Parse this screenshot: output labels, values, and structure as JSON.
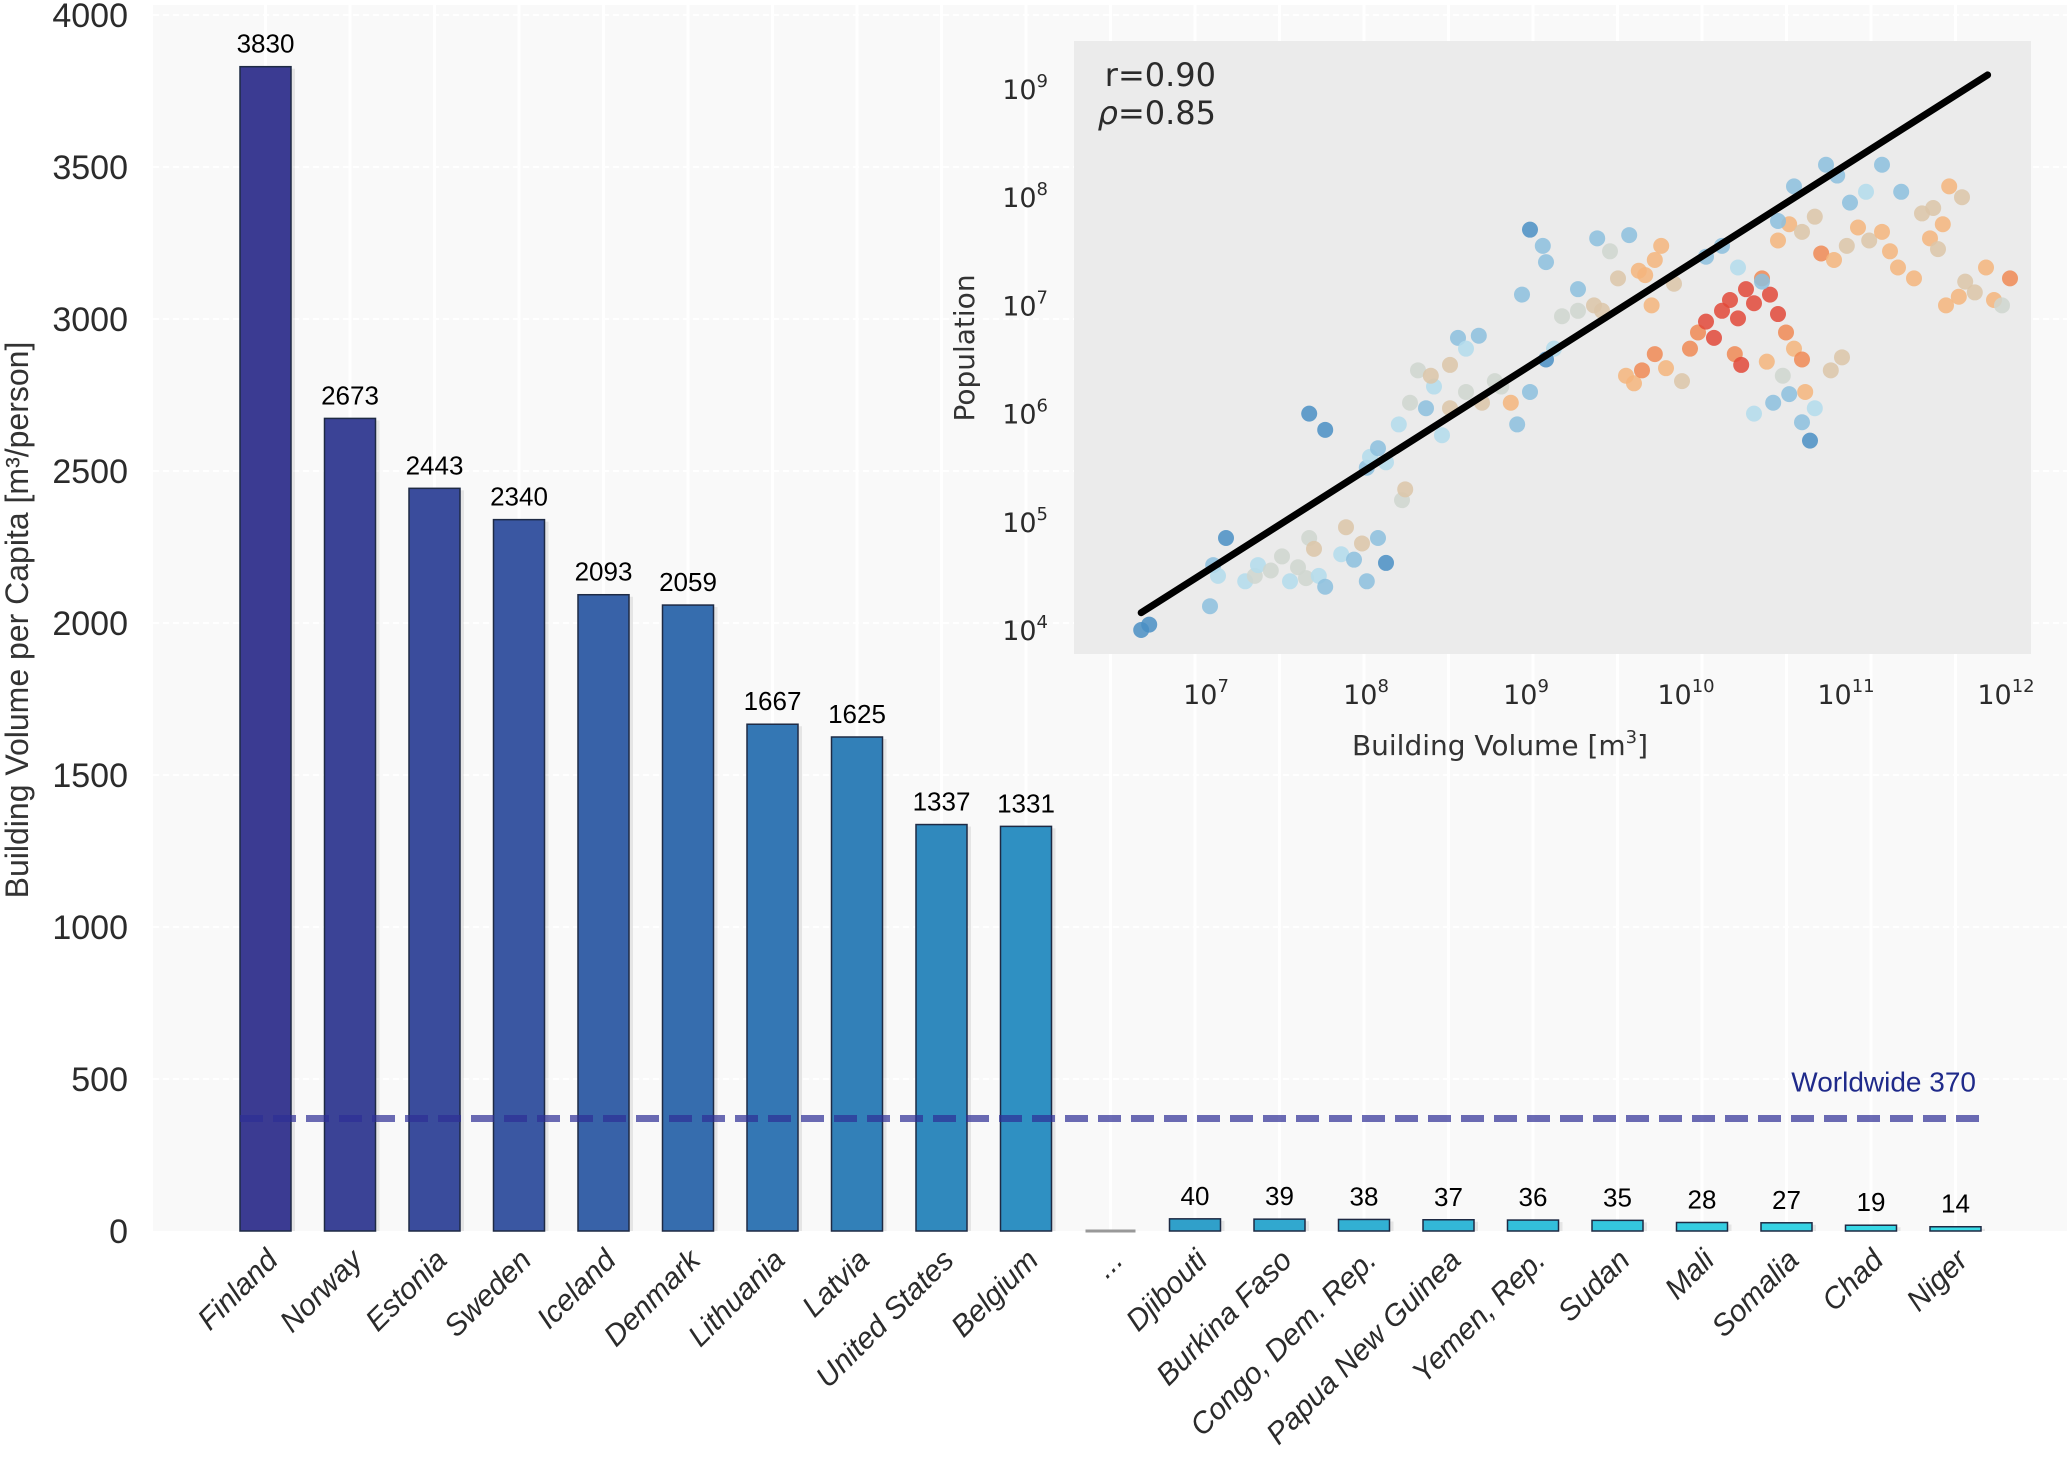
{
  "chart_data": [
    {
      "type": "bar",
      "title": "",
      "ylabel": "Building Volume per Capita [m³/person]",
      "xlabel": "",
      "ylim": [
        0,
        4000
      ],
      "yticks": [
        0,
        500,
        1000,
        1500,
        2000,
        2500,
        3000,
        3500,
        4000
      ],
      "grid": true,
      "categories": [
        "Finland",
        "Norway",
        "Estonia",
        "Sweden",
        "Iceland",
        "Denmark",
        "Lithuania",
        "Latvia",
        "United States",
        "Belgium",
        "...",
        "Djibouti",
        "Burkina Faso",
        "Congo, Dem. Rep.",
        "Papua New Guinea",
        "Yemen, Rep.",
        "Sudan",
        "Mali",
        "Somalia",
        "Chad",
        "Niger"
      ],
      "values": [
        3830,
        2673,
        2443,
        2340,
        2093,
        2059,
        1667,
        1625,
        1337,
        1331,
        null,
        40,
        39,
        38,
        37,
        36,
        35,
        28,
        27,
        19,
        14
      ],
      "data_labels": [
        "3830",
        "2673",
        "2443",
        "2340",
        "2093",
        "2059",
        "1667",
        "1625",
        "1337",
        "1331",
        "",
        "40",
        "39",
        "38",
        "37",
        "36",
        "35",
        "28",
        "27",
        "19",
        "14"
      ],
      "colors": [
        "#3b3b92",
        "#3b4396",
        "#3a4c9c",
        "#3a57a2",
        "#3862a8",
        "#366dae",
        "#3477b4",
        "#3280b8",
        "#3089bd",
        "#2f90c2",
        "#999999",
        "#30a0ca",
        "#31a8cf",
        "#32b0d3",
        "#33b7d7",
        "#33bfdb",
        "#34c6de",
        "#35cde1",
        "#36d2e3",
        "#38d8e6",
        "#3adde8"
      ],
      "reference_line": {
        "value": 370,
        "label": "Worldwide 370",
        "color": "#2e2f96"
      }
    },
    {
      "type": "scatter",
      "title": "",
      "xlabel": "Building Volume [m",
      "xlabel_sup": "3",
      "xlabel_end": "]",
      "ylabel": "Population",
      "xscale": "log",
      "yscale": "log",
      "xlim_log10": [
        6.45,
        12.15
      ],
      "ylim_log10": [
        3.8,
        9.55
      ],
      "xticks": [
        {
          "base": "10",
          "exp": "7",
          "v": 7
        },
        {
          "base": "10",
          "exp": "8",
          "v": 8
        },
        {
          "base": "10",
          "exp": "9",
          "v": 9
        },
        {
          "base": "10",
          "exp": "10",
          "v": 10
        },
        {
          "base": "10",
          "exp": "11",
          "v": 11
        },
        {
          "base": "10",
          "exp": "12",
          "v": 12
        }
      ],
      "yticks": [
        {
          "base": "10",
          "exp": "4",
          "v": 4
        },
        {
          "base": "10",
          "exp": "5",
          "v": 5
        },
        {
          "base": "10",
          "exp": "6",
          "v": 6
        },
        {
          "base": "10",
          "exp": "7",
          "v": 7
        },
        {
          "base": "10",
          "exp": "8",
          "v": 8
        },
        {
          "base": "10",
          "exp": "9",
          "v": 9
        }
      ],
      "annotations": {
        "r": "r=0.90",
        "rho_symbol": "ρ",
        "rho": "=0.85"
      },
      "fit_line_log10": [
        [
          6.57,
          4.16
        ],
        [
          11.86,
          9.13
        ]
      ],
      "palette": [
        "#4a8fc4",
        "#8cc0de",
        "#b3dcec",
        "#cfd6cf",
        "#dcc6a8",
        "#f4b57c",
        "#f08a55",
        "#e2493a"
      ],
      "points_log10": [
        [
          6.57,
          4.0,
          0
        ],
        [
          6.62,
          4.05,
          0
        ],
        [
          7.0,
          4.22,
          1
        ],
        [
          7.02,
          4.6,
          1
        ],
        [
          7.05,
          4.5,
          2
        ],
        [
          7.1,
          4.85,
          0
        ],
        [
          7.22,
          4.45,
          2
        ],
        [
          7.28,
          4.5,
          3
        ],
        [
          7.3,
          4.6,
          2
        ],
        [
          7.38,
          4.55,
          3
        ],
        [
          7.45,
          4.68,
          3
        ],
        [
          7.5,
          4.45,
          2
        ],
        [
          7.55,
          4.58,
          3
        ],
        [
          7.6,
          4.48,
          3
        ],
        [
          7.62,
          4.85,
          3
        ],
        [
          7.65,
          4.75,
          4
        ],
        [
          7.68,
          4.5,
          2
        ],
        [
          7.72,
          4.4,
          1
        ],
        [
          7.82,
          4.7,
          2
        ],
        [
          7.85,
          4.95,
          4
        ],
        [
          7.9,
          4.65,
          1
        ],
        [
          7.95,
          4.8,
          4
        ],
        [
          7.98,
          4.45,
          1
        ],
        [
          8.05,
          4.85,
          1
        ],
        [
          8.1,
          4.62,
          0
        ],
        [
          8.2,
          5.2,
          3
        ],
        [
          8.22,
          5.3,
          4
        ],
        [
          7.62,
          6.0,
          0
        ],
        [
          7.72,
          5.85,
          0
        ],
        [
          7.98,
          5.5,
          1
        ],
        [
          8.0,
          5.6,
          2
        ],
        [
          8.05,
          5.68,
          1
        ],
        [
          8.1,
          5.55,
          2
        ],
        [
          8.18,
          5.9,
          2
        ],
        [
          8.25,
          6.1,
          3
        ],
        [
          8.35,
          6.05,
          1
        ],
        [
          8.4,
          6.25,
          2
        ],
        [
          8.45,
          5.8,
          2
        ],
        [
          8.5,
          6.05,
          4
        ],
        [
          8.6,
          6.2,
          3
        ],
        [
          8.7,
          6.1,
          4
        ],
        [
          8.3,
          6.4,
          3
        ],
        [
          8.38,
          6.35,
          4
        ],
        [
          8.55,
          6.7,
          1
        ],
        [
          8.68,
          6.72,
          1
        ],
        [
          8.78,
          6.3,
          3
        ],
        [
          8.82,
          6.25,
          3
        ],
        [
          8.5,
          6.45,
          4
        ],
        [
          8.6,
          6.6,
          2
        ],
        [
          8.92,
          5.9,
          1
        ],
        [
          9.0,
          6.2,
          1
        ],
        [
          8.88,
          6.1,
          5
        ],
        [
          9.15,
          6.6,
          2
        ],
        [
          9.2,
          6.9,
          3
        ],
        [
          9.3,
          6.95,
          3
        ],
        [
          9.4,
          7.0,
          4
        ],
        [
          9.45,
          6.95,
          4
        ],
        [
          9.1,
          6.5,
          0
        ],
        [
          9.1,
          7.4,
          1
        ],
        [
          9.0,
          7.7,
          0
        ],
        [
          8.95,
          7.1,
          1
        ],
        [
          9.08,
          7.55,
          1
        ],
        [
          9.42,
          7.62,
          1
        ],
        [
          9.5,
          7.5,
          3
        ],
        [
          9.62,
          7.65,
          1
        ],
        [
          9.3,
          7.15,
          1
        ],
        [
          9.55,
          7.25,
          4
        ],
        [
          9.68,
          7.32,
          5
        ],
        [
          9.72,
          7.28,
          5
        ],
        [
          9.78,
          7.42,
          5
        ],
        [
          9.82,
          7.55,
          5
        ],
        [
          9.76,
          7.0,
          5
        ],
        [
          9.9,
          7.2,
          4
        ],
        [
          9.6,
          6.35,
          5
        ],
        [
          9.65,
          6.28,
          5
        ],
        [
          9.7,
          6.4,
          6
        ],
        [
          9.78,
          6.55,
          6
        ],
        [
          9.85,
          6.42,
          5
        ],
        [
          9.95,
          6.3,
          4
        ],
        [
          10.0,
          6.6,
          6
        ],
        [
          10.05,
          6.75,
          6
        ],
        [
          10.1,
          6.85,
          7
        ],
        [
          10.15,
          6.7,
          7
        ],
        [
          10.2,
          6.95,
          7
        ],
        [
          10.25,
          7.05,
          7
        ],
        [
          10.3,
          6.88,
          7
        ],
        [
          10.35,
          7.15,
          7
        ],
        [
          10.4,
          7.02,
          7
        ],
        [
          10.45,
          7.25,
          6
        ],
        [
          10.5,
          7.1,
          7
        ],
        [
          10.55,
          6.92,
          7
        ],
        [
          10.6,
          6.75,
          6
        ],
        [
          10.65,
          6.6,
          5
        ],
        [
          10.7,
          6.5,
          6
        ],
        [
          10.28,
          6.55,
          6
        ],
        [
          10.32,
          6.45,
          7
        ],
        [
          10.48,
          6.48,
          5
        ],
        [
          10.58,
          6.35,
          3
        ],
        [
          10.62,
          6.18,
          1
        ],
        [
          10.72,
          6.2,
          5
        ],
        [
          10.78,
          6.05,
          2
        ],
        [
          10.88,
          6.4,
          4
        ],
        [
          10.95,
          6.52,
          4
        ],
        [
          10.4,
          6.0,
          2
        ],
        [
          10.52,
          6.1,
          1
        ],
        [
          10.7,
          5.92,
          1
        ],
        [
          10.75,
          5.75,
          0
        ],
        [
          10.55,
          7.6,
          5
        ],
        [
          10.62,
          7.75,
          5
        ],
        [
          10.7,
          7.68,
          4
        ],
        [
          10.78,
          7.82,
          4
        ],
        [
          10.82,
          7.48,
          6
        ],
        [
          10.9,
          7.42,
          5
        ],
        [
          10.98,
          7.55,
          4
        ],
        [
          11.05,
          7.72,
          5
        ],
        [
          11.12,
          7.6,
          4
        ],
        [
          11.2,
          7.68,
          5
        ],
        [
          11.25,
          7.5,
          5
        ],
        [
          11.3,
          7.35,
          5
        ],
        [
          11.4,
          7.25,
          5
        ],
        [
          11.5,
          7.62,
          5
        ],
        [
          11.55,
          7.52,
          4
        ],
        [
          11.6,
          7.0,
          5
        ],
        [
          11.68,
          7.08,
          5
        ],
        [
          11.72,
          7.22,
          4
        ],
        [
          11.78,
          7.12,
          4
        ],
        [
          11.85,
          7.35,
          5
        ],
        [
          11.9,
          7.05,
          5
        ],
        [
          11.95,
          7.0,
          3
        ],
        [
          12.0,
          7.25,
          6
        ],
        [
          11.45,
          7.85,
          4
        ],
        [
          11.52,
          7.9,
          4
        ],
        [
          11.58,
          7.75,
          5
        ],
        [
          11.62,
          8.1,
          5
        ],
        [
          11.7,
          8.0,
          4
        ],
        [
          11.1,
          8.05,
          2
        ],
        [
          11.2,
          8.3,
          1
        ],
        [
          11.32,
          8.05,
          1
        ],
        [
          11.0,
          7.95,
          1
        ],
        [
          10.2,
          7.55,
          1
        ],
        [
          10.1,
          7.45,
          1
        ],
        [
          10.3,
          7.35,
          2
        ],
        [
          10.45,
          7.22,
          1
        ],
        [
          10.55,
          7.78,
          1
        ],
        [
          10.65,
          8.1,
          1
        ],
        [
          10.85,
          8.3,
          1
        ],
        [
          10.92,
          8.2,
          1
        ]
      ]
    }
  ]
}
